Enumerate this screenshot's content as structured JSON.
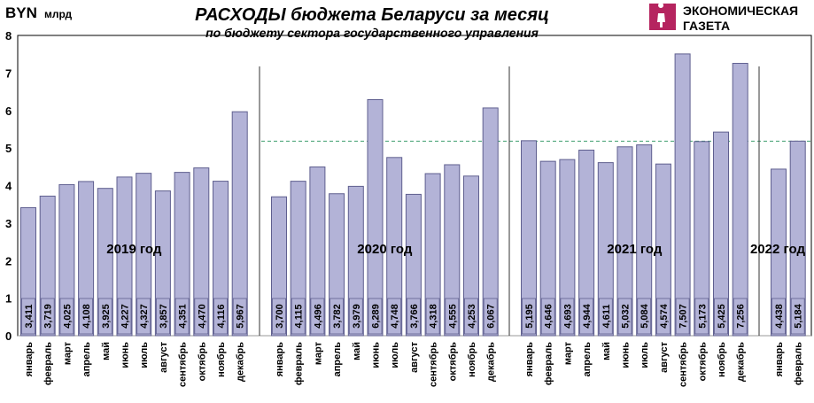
{
  "chart_data": {
    "type": "bar",
    "title": "РАСХОДЫ бюджета Беларуси за месяц",
    "subtitle": "по бюджету сектора государственного управления",
    "ylabel_unit": "BYN",
    "ylabel_suffix": "млрд",
    "ylim": [
      0,
      8
    ],
    "yticks": [
      0,
      1,
      2,
      3,
      4,
      5,
      6,
      7,
      8
    ],
    "reference_line": 5.184,
    "bar_color": "#B3B3D7",
    "bar_border": "#5F5F8F",
    "reference_line_color": "#3F9F6F",
    "groups": [
      {
        "label": "2019 год",
        "categories": [
          "январь",
          "февраль",
          "март",
          "апрель",
          "май",
          "июнь",
          "июль",
          "август",
          "сентябрь",
          "октябрь",
          "ноябрь",
          "декабрь"
        ],
        "values": [
          3.411,
          3.719,
          4.025,
          4.108,
          3.925,
          4.227,
          4.327,
          3.857,
          4.351,
          4.47,
          4.116,
          5.967
        ],
        "value_labels": [
          "3,411",
          "3,719",
          "4,025",
          "4,108",
          "3,925",
          "4,227",
          "4,327",
          "3,857",
          "4,351",
          "4,470",
          "4,116",
          "5,967"
        ]
      },
      {
        "label": "2020 год",
        "categories": [
          "январь",
          "февраль",
          "март",
          "апрель",
          "май",
          "июнь",
          "июль",
          "август",
          "сентябрь",
          "октябрь",
          "ноябрь",
          "декабрь"
        ],
        "values": [
          3.7,
          4.115,
          4.496,
          3.782,
          3.979,
          6.289,
          4.748,
          3.766,
          4.318,
          4.555,
          4.253,
          6.067
        ],
        "value_labels": [
          "3,700",
          "4,115",
          "4,496",
          "3,782",
          "3,979",
          "6,289",
          "4,748",
          "3,766",
          "4,318",
          "4,555",
          "4,253",
          "6,067"
        ]
      },
      {
        "label": "2021 год",
        "categories": [
          "январь",
          "февраль",
          "март",
          "апрель",
          "май",
          "июнь",
          "июль",
          "август",
          "сентябрь",
          "октябрь",
          "ноябрь",
          "декабрь"
        ],
        "values": [
          5.195,
          4.646,
          4.693,
          4.944,
          4.611,
          5.032,
          5.084,
          4.574,
          7.507,
          5.173,
          5.425,
          7.256
        ],
        "value_labels": [
          "5,195",
          "4,646",
          "4,693",
          "4,944",
          "4,611",
          "5,032",
          "5,084",
          "4,574",
          "7,507",
          "5,173",
          "5,425",
          "7,256"
        ]
      },
      {
        "label": "2022 год",
        "categories": [
          "январь",
          "февраль"
        ],
        "values": [
          4.438,
          5.184
        ],
        "value_labels": [
          "4,438",
          "5,184"
        ]
      }
    ]
  },
  "logo": {
    "line1": "ЭКОНОМИЧЕСКАЯ",
    "line2": "ГАЗЕТА",
    "color": "#B5245F"
  }
}
